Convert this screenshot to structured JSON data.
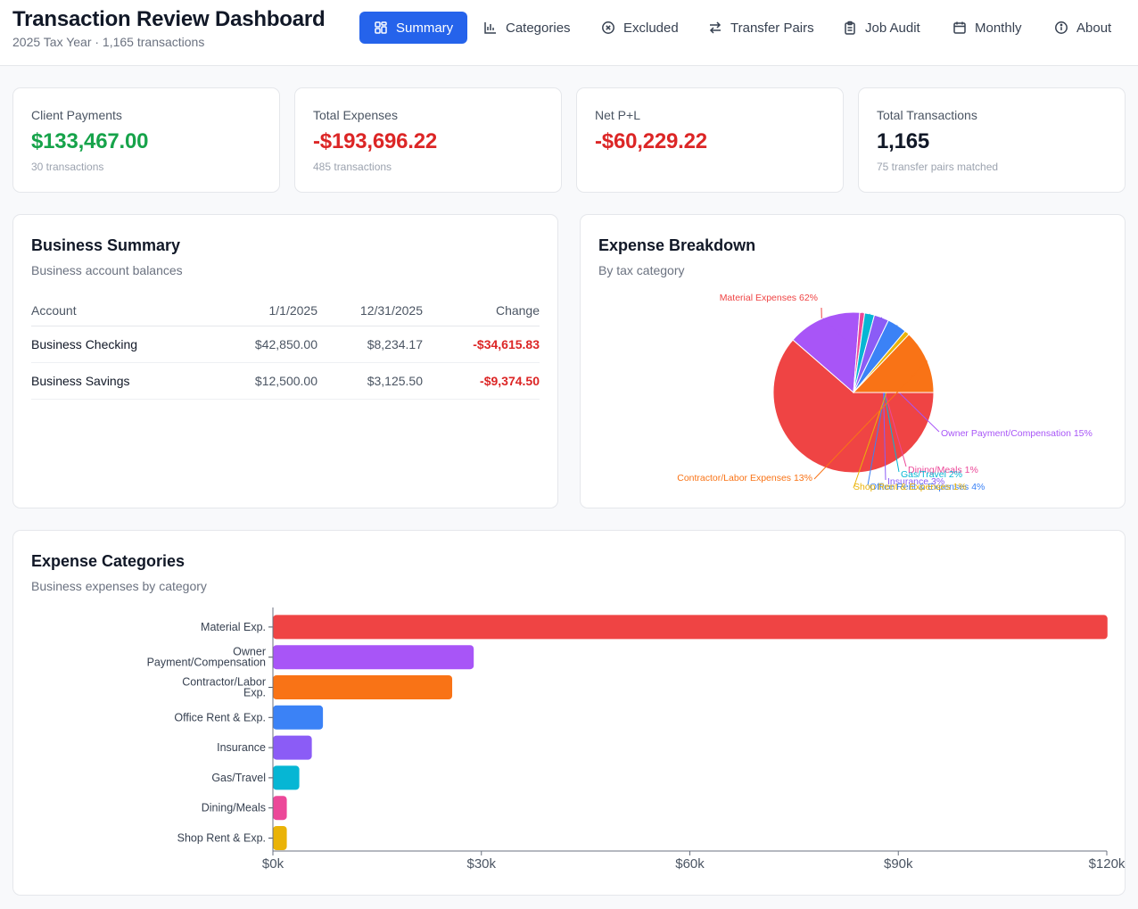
{
  "header": {
    "title": "Transaction Review Dashboard",
    "subtitle": "2025 Tax Year · 1,165 transactions"
  },
  "nav": {
    "tabs": [
      {
        "label": "Summary",
        "icon": "dashboard-grid-icon",
        "active": true
      },
      {
        "label": "Categories",
        "icon": "bar-chart-icon",
        "active": false
      },
      {
        "label": "Excluded",
        "icon": "x-circle-icon",
        "active": false
      },
      {
        "label": "Transfer Pairs",
        "icon": "swap-arrows-icon",
        "active": false
      },
      {
        "label": "Job Audit",
        "icon": "clipboard-icon",
        "active": false
      },
      {
        "label": "Monthly",
        "icon": "calendar-icon",
        "active": false
      },
      {
        "label": "About",
        "icon": "info-icon",
        "active": false
      }
    ]
  },
  "stats": [
    {
      "label": "Client Payments",
      "value": "$133,467.00",
      "sub": "30 transactions",
      "color": "#16a34a"
    },
    {
      "label": "Total Expenses",
      "value": "-$193,696.22",
      "sub": "485 transactions",
      "color": "#dc2626"
    },
    {
      "label": "Net P+L",
      "value": "-$60,229.22",
      "sub": "",
      "color": "#dc2626"
    },
    {
      "label": "Total Transactions",
      "value": "1,165",
      "sub": "75 transfer pairs matched",
      "color": "#111827"
    }
  ],
  "business_summary": {
    "title": "Business Summary",
    "description": "Business account balances",
    "columns": [
      "Account",
      "1/1/2025",
      "12/31/2025",
      "Change"
    ],
    "rows": [
      [
        "Business Checking",
        "$42,850.00",
        "$8,234.17",
        "-$34,615.83"
      ],
      [
        "Business Savings",
        "$12,500.00",
        "$3,125.50",
        "-$9,374.50"
      ]
    ]
  },
  "expense_breakdown": {
    "title": "Expense Breakdown",
    "description": "By tax category"
  },
  "expense_categories": {
    "title": "Expense Categories",
    "description": "Business expenses by category"
  },
  "chart_data": [
    {
      "type": "pie",
      "title": "Expense Breakdown",
      "slices": [
        {
          "label": "Material Expenses",
          "percent": 62,
          "color": "#ef4444"
        },
        {
          "label": "Owner Payment/Compensation",
          "percent": 15,
          "color": "#a855f7"
        },
        {
          "label": "Dining/Meals",
          "percent": 1,
          "color": "#ec4899"
        },
        {
          "label": "Gas/Travel",
          "percent": 2,
          "color": "#06b6d4"
        },
        {
          "label": "Insurance",
          "percent": 3,
          "color": "#8b5cf6"
        },
        {
          "label": "Office Rent & Expenses",
          "percent": 4,
          "color": "#3b82f6"
        },
        {
          "label": "Shop Rent & Expenses",
          "percent": 1,
          "color": "#eab308"
        },
        {
          "label": "Contractor/Labor Expenses",
          "percent": 13,
          "color": "#f97316"
        }
      ]
    },
    {
      "type": "bar",
      "orientation": "horizontal",
      "title": "Expense Categories",
      "categories": [
        "Material Exp.",
        "Owner Payment/Compensation",
        "Contractor/Labor Exp.",
        "Office Rent & Exp.",
        "Insurance",
        "Gas/Travel",
        "Dining/Meals",
        "Shop Rent & Exp."
      ],
      "values": [
        120100,
        28900,
        25800,
        7200,
        5600,
        3800,
        2000,
        2000
      ],
      "colors": [
        "#ef4444",
        "#a855f7",
        "#f97316",
        "#3b82f6",
        "#8b5cf6",
        "#06b6d4",
        "#ec4899",
        "#eab308"
      ],
      "xlim": [
        0,
        120000
      ],
      "xticks": [
        "$0k",
        "$30k",
        "$60k",
        "$90k",
        "$120k"
      ]
    }
  ]
}
